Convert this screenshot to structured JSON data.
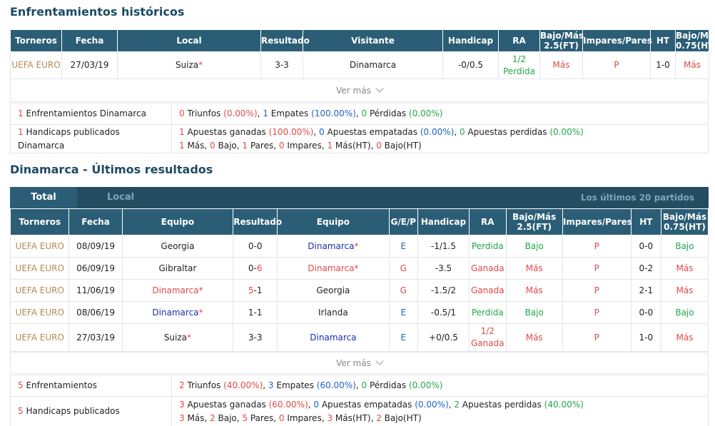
{
  "h2h": {
    "title": "Enfrentamientos históricos",
    "headers": [
      "Torneros",
      "Fecha",
      "Local",
      "Resultado",
      "Visitante",
      "Handicap",
      "RA",
      "Bajo/Más 2.5(FT)",
      "Impares/Pares",
      "HT",
      "Bajo/Más 0.75(HT)"
    ],
    "row": {
      "liga": "UEFA EURO",
      "fecha": "27/03/19",
      "local": "Suiza",
      "star": "*",
      "resultado": "3-3",
      "visitante": "Dinamarca",
      "handicap": "-0/0.5",
      "ra_1": "1/2",
      "ra_2": "Perdida",
      "bm": "Más",
      "ip": "P",
      "ht": "1-0",
      "bm_ht": "Más"
    },
    "ver_mas": "Ver más",
    "summary": {
      "l1_num": "1",
      "l1_text": "Enfrentamientos Dinamarca",
      "s1": [
        "0",
        " Triunfos ",
        "(0.00%)",
        ", ",
        "1",
        " Empates ",
        "(100.00%)",
        ", ",
        "0",
        " Pérdidas ",
        "(0.00%)"
      ],
      "l2_num": "1",
      "l2_text": "Handicaps publicados Dinamarca",
      "s2a": [
        "1",
        " Apuestas ganadas ",
        "(100.00%)",
        ", ",
        "0",
        " Apuestas empatadas ",
        "(0.00%)",
        ", ",
        "0",
        " Apuestas perdidas ",
        "(0.00%)"
      ],
      "s2b": [
        "1",
        " Más, ",
        "0",
        " Bajo, ",
        "1",
        " Pares, ",
        "0",
        " Impares, ",
        "1",
        " Más(HT), ",
        "0",
        " Bajo(HT)"
      ]
    }
  },
  "recent": {
    "title": "Dinamarca - Últimos resultados",
    "tab_total": "Total",
    "tab_local": "Local",
    "tab_last": "Los últimos 20 partidos",
    "headers": [
      "Torneros",
      "Fecha",
      "Equipo",
      "Resultado",
      "Equipo",
      "G/E/P",
      "Handicap",
      "RA",
      "Bajo/Más 2.5(FT)",
      "Impares/Pares",
      "HT",
      "Bajo/Más 0.75(HT)"
    ],
    "rows": [
      {
        "liga": "UEFA EURO",
        "fecha": "08/09/19",
        "home": "Georgia",
        "home_star": "",
        "res_a": "0",
        "res_b": "0",
        "away": "Dinamarca",
        "away_star": "*",
        "gep": "E",
        "handicap": "-1/1.5",
        "ra_1": "Perdida",
        "ra_2": "",
        "bm": "Bajo",
        "ip": "P",
        "ht": "0-0",
        "bm_ht": "Bajo"
      },
      {
        "liga": "UEFA EURO",
        "fecha": "06/09/19",
        "home": "Gibraltar",
        "home_star": "",
        "res_a": "0",
        "res_b": "6",
        "away": "Dinamarca",
        "away_star": "*",
        "gep": "G",
        "handicap": "-3.5",
        "ra_1": "Ganada",
        "ra_2": "",
        "bm": "Más",
        "ip": "P",
        "ht": "0-2",
        "bm_ht": "Más"
      },
      {
        "liga": "UEFA EURO",
        "fecha": "11/06/19",
        "home": "Dinamarca",
        "home_star": "*",
        "res_a": "5",
        "res_b": "1",
        "away": "Georgia",
        "away_star": "",
        "gep": "G",
        "handicap": "-1.5/2",
        "ra_1": "Ganada",
        "ra_2": "",
        "bm": "Más",
        "ip": "P",
        "ht": "2-1",
        "bm_ht": "Más"
      },
      {
        "liga": "UEFA EURO",
        "fecha": "08/06/19",
        "home": "Dinamarca",
        "home_star": "*",
        "res_a": "1",
        "res_b": "1",
        "away": "Irlanda",
        "away_star": "",
        "gep": "E",
        "handicap": "-0.5/1",
        "ra_1": "Perdida",
        "ra_2": "",
        "bm": "Bajo",
        "ip": "P",
        "ht": "0-0",
        "bm_ht": "Bajo"
      },
      {
        "liga": "UEFA EURO",
        "fecha": "27/03/19",
        "home": "Suiza",
        "home_star": "*",
        "res_a": "3",
        "res_b": "3",
        "away": "Dinamarca",
        "away_star": "",
        "gep": "E",
        "handicap": "+0/0.5",
        "ra_1": "1/2",
        "ra_2": "Ganada",
        "bm": "Más",
        "ip": "P",
        "ht": "1-0",
        "bm_ht": "Más"
      }
    ],
    "ver_mas": "Ver más",
    "summary": {
      "l1_num": "5",
      "l1_text": "Enfrentamientos",
      "s1": [
        "2",
        " Triunfos ",
        "(40.00%)",
        ", ",
        "3",
        " Empates ",
        "(60.00%)",
        ", ",
        "0",
        " Pérdidas ",
        "(0.00%)"
      ],
      "l2_num": "5",
      "l2_text": "Handicaps publicados",
      "s2a": [
        "3",
        " Apuestas ganadas ",
        "(60.00%)",
        ", ",
        "0",
        " Apuestas empatadas ",
        "(0.00%)",
        ", ",
        "2",
        " Apuestas perdidas ",
        "(40.00%)"
      ],
      "s2b": [
        "3",
        " Más, ",
        "2",
        " Bajo, ",
        "5",
        " Pares, ",
        "0",
        " Impares, ",
        "3",
        " Más(HT), ",
        "2",
        " Bajo(HT)"
      ]
    }
  },
  "colors": {
    "header_bg": "#2b5e76",
    "tab_bar": "#244d62",
    "title": "#1c4b63",
    "red": "#e34949",
    "green": "#21a84a",
    "blue": "#1d62c8",
    "gold": "#b38a53"
  }
}
